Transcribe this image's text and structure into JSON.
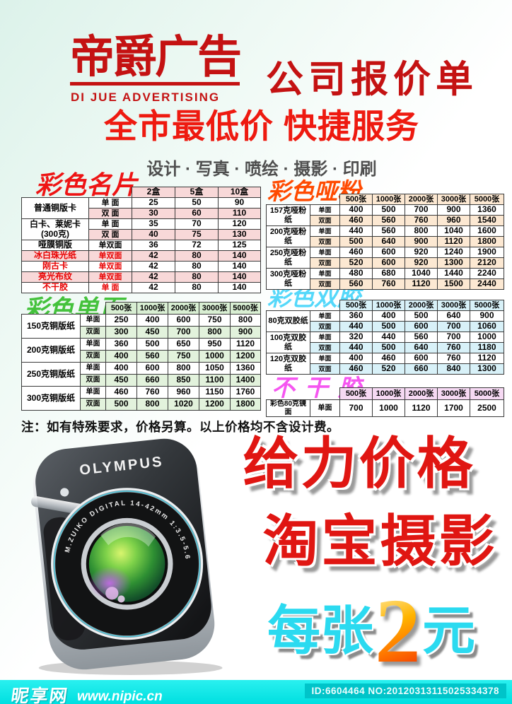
{
  "colors": {
    "brand_red": "#c41212",
    "slogan_red": "#ee1a10",
    "services_gray": "#4f4f4f",
    "title_mingpian": "#ee1414",
    "title_danye": "#44c23c",
    "title_yafen": "#ff4a00",
    "title_shuangjiao": "#55d8fa",
    "title_buganjiao": "#f556f0",
    "row_tint_pink": "#f8d8d8",
    "row_tint_green": "#e2f2dc",
    "row_tint_peach": "#fce8d2",
    "row_tint_cyan": "#d8f1f8",
    "row_tint_magenta": "#f6d9f3",
    "promo_red": "#e01612",
    "price_cyan": "#2bdaf0",
    "price_orange": "#ff9d00",
    "footer_cyan": "#00dfe0"
  },
  "header": {
    "brand_title": "帝爵广告",
    "brand_subtitle": "DI JUE ADVERTISING",
    "doc_title": "公司报价单",
    "slogan": "全市最低价 快捷服务",
    "services": "设计 · 写真 · 喷绘 · 摄影 · 印刷"
  },
  "tables": {
    "mingpian": {
      "title": "彩色名片",
      "headers": [
        "2盒",
        "5盒",
        "10盒"
      ],
      "groups": [
        {
          "product": "普通铜版卡",
          "rows": [
            {
              "side": "单 面",
              "vals": [
                "25",
                "50",
                "90"
              ]
            },
            {
              "side": "双 面",
              "vals": [
                "30",
                "60",
                "110"
              ]
            }
          ]
        },
        {
          "product": "白卡、莱妮卡\n(300克)",
          "rows": [
            {
              "side": "单 面",
              "vals": [
                "35",
                "70",
                "120"
              ]
            },
            {
              "side": "双 面",
              "vals": [
                "40",
                "75",
                "130"
              ]
            }
          ]
        },
        {
          "product": "哑膜铜版",
          "rows": [
            {
              "side": "单双面",
              "vals": [
                "36",
                "72",
                "125"
              ]
            }
          ]
        },
        {
          "product": "冰白珠光纸",
          "red": true,
          "rows": [
            {
              "side": "单双面",
              "vals": [
                "42",
                "80",
                "140"
              ]
            }
          ]
        },
        {
          "product": "刚古卡",
          "red": true,
          "rows": [
            {
              "side": "单双面",
              "vals": [
                "42",
                "80",
                "140"
              ]
            }
          ]
        },
        {
          "product": "亮光布纹",
          "red": true,
          "rows": [
            {
              "side": "单双面",
              "vals": [
                "42",
                "80",
                "140"
              ]
            }
          ]
        },
        {
          "product": "不干胶",
          "red": true,
          "rows": [
            {
              "side": "单 面",
              "vals": [
                "42",
                "80",
                "140"
              ]
            }
          ]
        }
      ]
    },
    "danye": {
      "title": "彩色单页",
      "headers": [
        "500张",
        "1000张",
        "2000张",
        "3000张",
        "5000张"
      ],
      "groups": [
        {
          "product": "150克铜版纸",
          "rows": [
            {
              "side": "单面",
              "vals": [
                "250",
                "400",
                "600",
                "750",
                "800"
              ]
            },
            {
              "side": "双面",
              "vals": [
                "300",
                "450",
                "700",
                "800",
                "900"
              ]
            }
          ]
        },
        {
          "product": "200克铜版纸",
          "rows": [
            {
              "side": "单面",
              "vals": [
                "360",
                "500",
                "650",
                "950",
                "1120"
              ]
            },
            {
              "side": "双面",
              "vals": [
                "400",
                "560",
                "750",
                "1000",
                "1200"
              ]
            }
          ]
        },
        {
          "product": "250克铜版纸",
          "rows": [
            {
              "side": "单面",
              "vals": [
                "400",
                "600",
                "800",
                "1050",
                "1360"
              ]
            },
            {
              "side": "双面",
              "vals": [
                "450",
                "660",
                "850",
                "1100",
                "1400"
              ]
            }
          ]
        },
        {
          "product": "300克铜版纸",
          "rows": [
            {
              "side": "单面",
              "vals": [
                "460",
                "760",
                "960",
                "1150",
                "1760"
              ]
            },
            {
              "side": "双面",
              "vals": [
                "500",
                "800",
                "1020",
                "1200",
                "1800"
              ]
            }
          ]
        }
      ]
    },
    "yafen": {
      "title": "彩色哑粉",
      "headers": [
        "500张",
        "1000张",
        "2000张",
        "3000张",
        "5000张"
      ],
      "groups": [
        {
          "product": "157克哑粉纸",
          "rows": [
            {
              "side": "单面",
              "vals": [
                "400",
                "500",
                "700",
                "900",
                "1360"
              ]
            },
            {
              "side": "双面",
              "vals": [
                "460",
                "560",
                "760",
                "960",
                "1540"
              ]
            }
          ]
        },
        {
          "product": "200克哑粉纸",
          "rows": [
            {
              "side": "单面",
              "vals": [
                "440",
                "560",
                "800",
                "1040",
                "1600"
              ]
            },
            {
              "side": "双面",
              "vals": [
                "500",
                "640",
                "900",
                "1120",
                "1800"
              ]
            }
          ]
        },
        {
          "product": "250克哑粉纸",
          "rows": [
            {
              "side": "单面",
              "vals": [
                "460",
                "600",
                "920",
                "1240",
                "1900"
              ]
            },
            {
              "side": "双面",
              "vals": [
                "520",
                "600",
                "920",
                "1300",
                "2120"
              ]
            }
          ]
        },
        {
          "product": "300克哑粉纸",
          "rows": [
            {
              "side": "单面",
              "vals": [
                "480",
                "680",
                "1040",
                "1440",
                "2240"
              ]
            },
            {
              "side": "双面",
              "vals": [
                "560",
                "760",
                "1120",
                "1500",
                "2440"
              ]
            }
          ]
        }
      ]
    },
    "shuangjiao": {
      "title": "彩色双胶",
      "headers": [
        "500张",
        "1000张",
        "2000张",
        "3000张",
        "5000张"
      ],
      "groups": [
        {
          "product": "80克双胶纸",
          "rows": [
            {
              "side": "单面",
              "vals": [
                "360",
                "400",
                "500",
                "640",
                "900"
              ]
            },
            {
              "side": "双面",
              "vals": [
                "440",
                "500",
                "600",
                "700",
                "1060"
              ]
            }
          ]
        },
        {
          "product": "100克双胶纸",
          "rows": [
            {
              "side": "单面",
              "vals": [
                "320",
                "440",
                "560",
                "700",
                "1000"
              ]
            },
            {
              "side": "双面",
              "vals": [
                "440",
                "500",
                "640",
                "760",
                "1180"
              ]
            }
          ]
        },
        {
          "product": "120克双胶纸",
          "rows": [
            {
              "side": "单面",
              "vals": [
                "400",
                "460",
                "600",
                "760",
                "1120"
              ]
            },
            {
              "side": "双面",
              "vals": [
                "460",
                "520",
                "660",
                "840",
                "1300"
              ]
            }
          ]
        }
      ]
    },
    "buganjiao": {
      "title": "不干胶",
      "headers": [
        "500张",
        "1000张",
        "2000张",
        "3000张",
        "5000张"
      ],
      "groups": [
        {
          "product": "彩色80克镜面",
          "rows": [
            {
              "side": "单面",
              "vals": [
                "700",
                "1000",
                "1120",
                "1700",
                "2500"
              ]
            }
          ]
        }
      ]
    }
  },
  "note": "注：如有特殊要求，价格另算。以上价格均不含设计费。",
  "promo": {
    "line1": "给力价格",
    "line2": "淘宝摄影",
    "price_prefix": "每张",
    "price_number": "2",
    "price_suffix": "元"
  },
  "camera": {
    "brand": "OLYMPUS",
    "lens_text": "M.ZUIKO DIGITAL 14-42mm 1:3.5-5.6"
  },
  "footer": {
    "logo": "昵享网",
    "url": "www.nipic.cn",
    "id_text": "ID:6604464 NO:20120313115025334378"
  }
}
